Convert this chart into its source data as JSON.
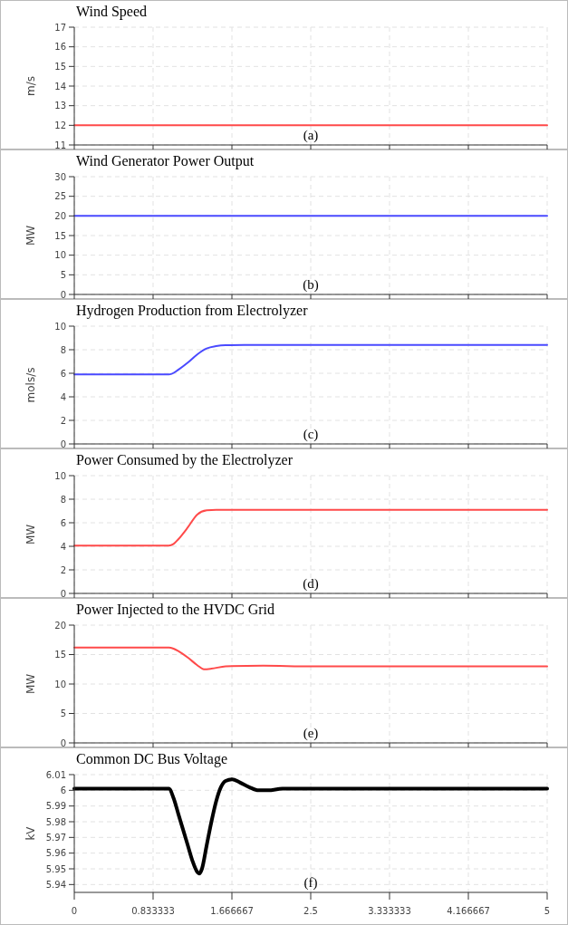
{
  "chart_data": [
    {
      "type": "line",
      "title": "Wind Speed",
      "ylabel": "m/s",
      "annotations": [
        "(a)"
      ],
      "xlim": [
        0,
        5
      ],
      "xticks": [
        0,
        {
          "value": 0.833333,
          "label": null
        },
        {
          "value": 1.666667,
          "label": null
        },
        {
          "value": 2.5,
          "label": null
        },
        {
          "value": 3.333333,
          "label": null
        },
        {
          "value": 4.166667,
          "label": null
        },
        {
          "value": 5,
          "label": null
        }
      ],
      "ylim": [
        11,
        17
      ],
      "yticks": [
        11,
        12,
        13,
        14,
        15,
        16,
        17
      ],
      "grid": true,
      "tick_labels": "y",
      "x": [
        0,
        5
      ],
      "series": [
        {
          "color": "#ff4a4a",
          "values": [
            12,
            12
          ]
        }
      ]
    },
    {
      "type": "line",
      "title": "Wind Generator Power Output",
      "ylabel": "MW",
      "annotations": [
        "(b)"
      ],
      "xlim": [
        0,
        5
      ],
      "xticks": [
        0,
        {
          "value": 0.833333,
          "label": null
        },
        {
          "value": 1.666667,
          "label": null
        },
        {
          "value": 2.5,
          "label": null
        },
        {
          "value": 3.333333,
          "label": null
        },
        {
          "value": 4.166667,
          "label": null
        },
        {
          "value": 5,
          "label": null
        }
      ],
      "ylim": [
        0,
        30
      ],
      "yticks": [
        0,
        5,
        10,
        15,
        20,
        25,
        30
      ],
      "grid": true,
      "tick_labels": "y",
      "x": [
        0,
        5
      ],
      "series": [
        {
          "color": "#4a4aff",
          "values": [
            20,
            20
          ]
        }
      ]
    },
    {
      "type": "line",
      "title": "Hydrogen Production from Electrolyzer",
      "ylabel": "mols/s",
      "annotations": [
        "(c)"
      ],
      "xlim": [
        0,
        5
      ],
      "xticks": [
        0,
        {
          "value": 0.833333,
          "label": null
        },
        {
          "value": 1.666667,
          "label": null
        },
        {
          "value": 2.5,
          "label": null
        },
        {
          "value": 3.333333,
          "label": null
        },
        {
          "value": 4.166667,
          "label": null
        },
        {
          "value": 5,
          "label": null
        }
      ],
      "ylim": [
        0,
        10
      ],
      "yticks": [
        0,
        2,
        4,
        6,
        8,
        10
      ],
      "grid": true,
      "tick_labels": "y",
      "x": [
        0,
        1.0,
        1.03,
        1.1,
        1.2,
        1.3,
        1.4,
        1.5,
        1.6,
        1.8,
        2.5,
        5
      ],
      "series": [
        {
          "color": "#4a4aff",
          "values": [
            5.9,
            5.9,
            5.95,
            6.3,
            6.9,
            7.6,
            8.1,
            8.3,
            8.38,
            8.4,
            8.4,
            8.4
          ]
        }
      ]
    },
    {
      "type": "line",
      "title": "Power Consumed by the Electrolyzer",
      "ylabel": "MW",
      "annotations": [
        "(d)"
      ],
      "xlim": [
        0,
        5
      ],
      "xticks": [
        0,
        {
          "value": 0.833333,
          "label": null
        },
        {
          "value": 1.666667,
          "label": null
        },
        {
          "value": 2.5,
          "label": null
        },
        {
          "value": 3.333333,
          "label": null
        },
        {
          "value": 4.166667,
          "label": null
        },
        {
          "value": 5,
          "label": null
        }
      ],
      "ylim": [
        0,
        10
      ],
      "yticks": [
        0,
        2,
        4,
        6,
        8,
        10
      ],
      "grid": true,
      "tick_labels": "y",
      "x": [
        0,
        1.0,
        1.05,
        1.1,
        1.2,
        1.3,
        1.4,
        1.5,
        2,
        5
      ],
      "series": [
        {
          "color": "#ff4a4a",
          "values": [
            4.05,
            4.05,
            4.2,
            4.6,
            5.6,
            6.7,
            7.05,
            7.1,
            7.1,
            7.1
          ]
        }
      ]
    },
    {
      "type": "line",
      "title": "Power Injected to the HVDC Grid",
      "ylabel": "MW",
      "annotations": [
        "(e)"
      ],
      "xlim": [
        0,
        5
      ],
      "xticks": [
        0,
        {
          "value": 0.833333,
          "label": null
        },
        {
          "value": 1.666667,
          "label": null
        },
        {
          "value": 2.5,
          "label": null
        },
        {
          "value": 3.333333,
          "label": null
        },
        {
          "value": 4.166667,
          "label": null
        },
        {
          "value": 5,
          "label": null
        }
      ],
      "ylim": [
        0,
        20
      ],
      "yticks": [
        0,
        5,
        10,
        15,
        20
      ],
      "grid": true,
      "tick_labels": "y",
      "x": [
        0,
        1.0,
        1.05,
        1.1,
        1.2,
        1.3,
        1.37,
        1.45,
        1.6,
        2,
        2.5,
        5
      ],
      "series": [
        {
          "color": "#ff4a4a",
          "values": [
            16.2,
            16.2,
            16.0,
            15.6,
            14.5,
            13.2,
            12.5,
            12.6,
            13.0,
            13.1,
            13.0,
            13.0
          ]
        }
      ]
    },
    {
      "type": "line",
      "title": "Common DC Bus Voltage",
      "ylabel": "kV",
      "annotations": [
        "(f)"
      ],
      "xlim": [
        0,
        5
      ],
      "xticks": [
        0,
        0.833333,
        1.666667,
        2.5,
        3.333333,
        4.166667,
        5
      ],
      "ylim": [
        5.935,
        6.01
      ],
      "yticks": [
        5.94,
        5.95,
        5.96,
        5.97,
        5.98,
        5.99,
        6,
        6.01
      ],
      "grid": true,
      "x": [
        0,
        1.0,
        1.05,
        1.1,
        1.15,
        1.2,
        1.25,
        1.3,
        1.32,
        1.35,
        1.4,
        1.45,
        1.5,
        1.55,
        1.6,
        1.67,
        1.75,
        1.85,
        1.95,
        2.05,
        2.2,
        5
      ],
      "series": [
        {
          "color": "#000000",
          "values": [
            6.001,
            6.001,
            5.995,
            5.985,
            5.975,
            5.965,
            5.955,
            5.948,
            5.947,
            5.95,
            5.965,
            5.98,
            5.993,
            6.002,
            6.006,
            6.007,
            6.005,
            6.002,
            6.0,
            6.0,
            6.001,
            6.001
          ]
        }
      ]
    }
  ]
}
